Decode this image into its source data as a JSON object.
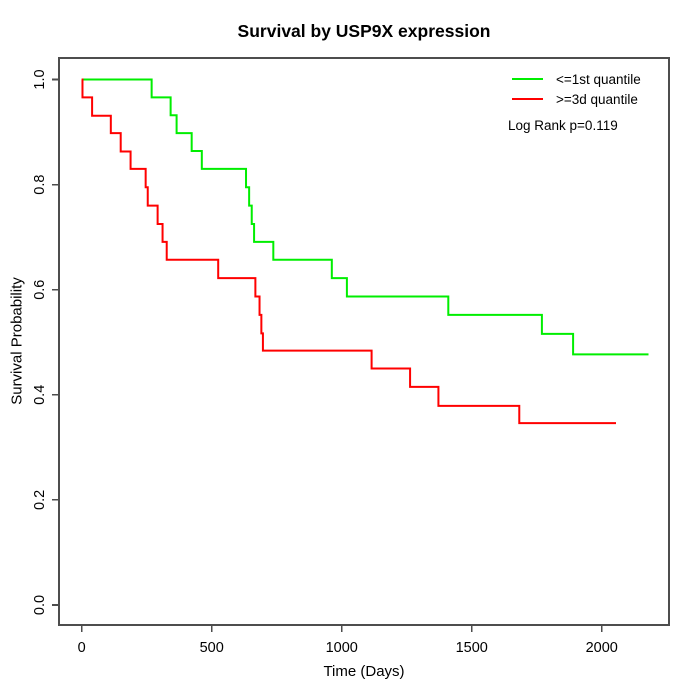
{
  "chart_data": {
    "type": "line",
    "subtype": "kaplan-meier-step",
    "title": "Survival by USP9X expression",
    "xlabel": "Time (Days)",
    "ylabel": "Survival Probability",
    "xticks": [
      0,
      500,
      1000,
      1500,
      2000
    ],
    "yticks": [
      "0.0",
      "0.2",
      "0.4",
      "0.6",
      "0.8",
      "1.0"
    ],
    "xlim": [
      0,
      2260
    ],
    "ylim": [
      0.0,
      1.0
    ],
    "grid": false,
    "legend_position": "top-right",
    "annotation": "Log Rank p=0.119",
    "axis_color": "#4d4d4d",
    "series": [
      {
        "label": "<=1st quantile",
        "color": "#00ee00",
        "end_time": 2180,
        "steps": [
          [
            0,
            1.0
          ],
          [
            269,
            0.966
          ],
          [
            342,
            0.932
          ],
          [
            365,
            0.898
          ],
          [
            423,
            0.864
          ],
          [
            462,
            0.83
          ],
          [
            632,
            0.795
          ],
          [
            644,
            0.76
          ],
          [
            654,
            0.725
          ],
          [
            663,
            0.691
          ],
          [
            737,
            0.657
          ],
          [
            962,
            0.622
          ],
          [
            1020,
            0.587
          ],
          [
            1410,
            0.552
          ],
          [
            1770,
            0.516
          ],
          [
            1890,
            0.477
          ]
        ]
      },
      {
        "label": ">=3d quantile",
        "color": "#ff0000",
        "end_time": 2055,
        "steps": [
          [
            0,
            1.0
          ],
          [
            3,
            0.966
          ],
          [
            40,
            0.931
          ],
          [
            112,
            0.898
          ],
          [
            150,
            0.863
          ],
          [
            188,
            0.83
          ],
          [
            246,
            0.795
          ],
          [
            254,
            0.76
          ],
          [
            292,
            0.725
          ],
          [
            311,
            0.691
          ],
          [
            327,
            0.657
          ],
          [
            525,
            0.622
          ],
          [
            668,
            0.587
          ],
          [
            684,
            0.552
          ],
          [
            691,
            0.517
          ],
          [
            697,
            0.484
          ],
          [
            1115,
            0.45
          ],
          [
            1263,
            0.415
          ],
          [
            1372,
            0.379
          ],
          [
            1683,
            0.346
          ]
        ]
      }
    ]
  }
}
